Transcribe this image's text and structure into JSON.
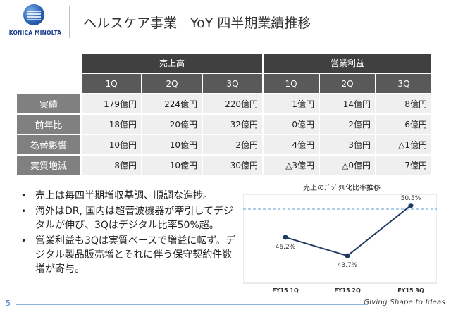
{
  "header": {
    "logo_text": "KONICA MINOLTA",
    "title": "ヘルスケア事業　YoY 四半期業績推移"
  },
  "table": {
    "groups": [
      "売上高",
      "営業利益"
    ],
    "quarters": [
      "1Q",
      "2Q",
      "3Q",
      "1Q",
      "2Q",
      "3Q"
    ],
    "rows": [
      {
        "label": "実績",
        "values": [
          "179億円",
          "224億円",
          "220億円",
          "1億円",
          "14億円",
          "8億円"
        ]
      },
      {
        "label": "前年比",
        "values": [
          "18億円",
          "20億円",
          "32億円",
          "0億円",
          "2億円",
          "6億円"
        ]
      },
      {
        "label": "為替影響",
        "values": [
          "10億円",
          "10億円",
          "2億円",
          "4億円",
          "3億円",
          "△1億円"
        ]
      },
      {
        "label": "実質増減",
        "values": [
          "8億円",
          "10億円",
          "30億円",
          "△3億円",
          "△0億円",
          "7億円"
        ]
      }
    ]
  },
  "bullets": [
    "売上は毎四半期増収基調、順調な進捗。",
    "海外はDR, 国内は超音波機器が牽引してデジタルが伸び、3Qはデジタル比率50%超。",
    "営業利益も3Qは実質ベースで増益に転ず。デジタル製品販売増とそれに伴う保守契約件数増が寄与。"
  ],
  "chart_data": {
    "type": "line",
    "title": "売上のﾃﾞｼﾞﾀﾙ化比率推移",
    "categories": [
      "FY15 1Q",
      "FY15 2Q",
      "FY15 3Q"
    ],
    "values": [
      46.2,
      43.7,
      50.5
    ],
    "value_labels": [
      "46.2%",
      "43.7%",
      "50.5%"
    ],
    "reference_line": 50,
    "ylim": [
      40,
      52
    ],
    "grid": false,
    "line_color": "#203864",
    "reference_color": "#5b9bd5"
  },
  "footer": {
    "page_number": "5",
    "tagline": "Giving Shape to Ideas"
  }
}
